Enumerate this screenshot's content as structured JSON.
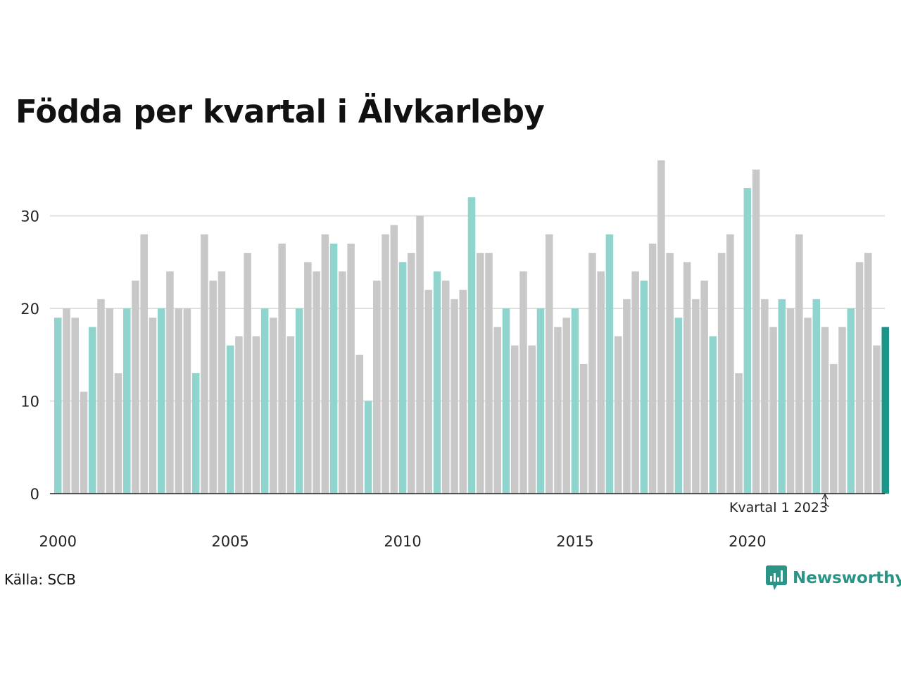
{
  "title": "Födda per kvartal i Älvkarleby",
  "source": "Källa: SCB",
  "logo_text": "Newsworthy",
  "colors": {
    "highlight_quarter": "#8fd4cd",
    "other_quarter": "#c8c8c8",
    "latest": "#1c9488",
    "gridline": "#e0e0e0",
    "axis": "#222222"
  },
  "chart_data": {
    "type": "bar",
    "title": "Födda per kvartal i Älvkarleby",
    "xlabel": "",
    "ylabel": "",
    "ylim": [
      0,
      37
    ],
    "yticks": [
      0,
      10,
      20,
      30
    ],
    "grid": true,
    "x_tick_labels": [
      "2000",
      "2005",
      "2010",
      "2015",
      "2020"
    ],
    "annotation": "Kvartal 1 2023",
    "start": "2000 Q1",
    "values": [
      19,
      20,
      19,
      11,
      18,
      21,
      20,
      13,
      20,
      23,
      28,
      19,
      20,
      24,
      20,
      20,
      13,
      28,
      23,
      24,
      16,
      17,
      26,
      17,
      20,
      19,
      27,
      17,
      20,
      25,
      24,
      28,
      27,
      24,
      27,
      15,
      10,
      23,
      28,
      29,
      25,
      26,
      30,
      22,
      24,
      23,
      21,
      22,
      32,
      26,
      26,
      18,
      20,
      16,
      24,
      16,
      20,
      28,
      18,
      19,
      20,
      14,
      26,
      24,
      28,
      17,
      21,
      24,
      23,
      27,
      36,
      26,
      19,
      25,
      21,
      23,
      17,
      26,
      28,
      13,
      33,
      35,
      21,
      18,
      21,
      20,
      28,
      19,
      21,
      18,
      14,
      18,
      20,
      25,
      26,
      16,
      18
    ]
  }
}
